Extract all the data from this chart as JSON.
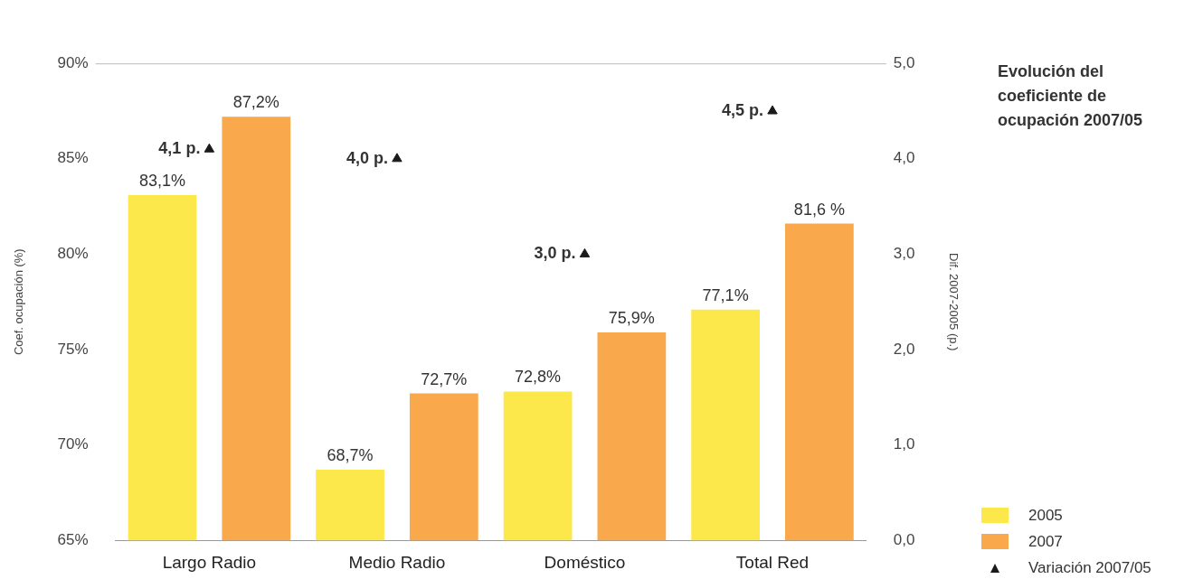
{
  "chart_data": {
    "type": "bar",
    "title": "Evolución del coeficiente de ocupación 2007/05",
    "categories": [
      "Largo Radio",
      "Medio Radio",
      "Doméstico",
      "Total Red"
    ],
    "series": [
      {
        "name": "2005",
        "color": "#fde84c",
        "values": [
          83.1,
          68.7,
          72.8,
          77.1
        ],
        "value_labels": [
          "83,1%",
          "68,7%",
          "72,8%",
          "77,1%"
        ]
      },
      {
        "name": "2007",
        "color": "#f9a94b",
        "values": [
          87.2,
          72.7,
          75.9,
          81.6
        ],
        "value_labels": [
          "87,2%",
          "72,7%",
          "75,9%",
          "81,6 %"
        ]
      },
      {
        "name": "Variación 2007/05",
        "type": "scatter",
        "axis": "y2",
        "color": "#1a1a1a",
        "marker": "triangle",
        "x": [
          "Largo Radio",
          "Medio Radio",
          "Doméstico",
          "Total Red"
        ],
        "values": [
          4.1,
          4.0,
          3.0,
          4.5
        ],
        "value_labels": [
          "4,1 p.",
          "4,0 p.",
          "3,0 p.",
          "4,5 p."
        ]
      }
    ],
    "ylabel": "Coef. ocupación (%)",
    "y2label": "Dif. 2007-2005 (p.)",
    "ylim": [
      65,
      90
    ],
    "yticks": [
      {
        "value": 65,
        "label": "65%"
      },
      {
        "value": 70,
        "label": "70%"
      },
      {
        "value": 75,
        "label": "75%"
      },
      {
        "value": 80,
        "label": "80%"
      },
      {
        "value": 85,
        "label": "85%"
      },
      {
        "value": 90,
        "label": "90%"
      }
    ],
    "y2lim": [
      0,
      5
    ],
    "y2ticks": [
      {
        "value": 0,
        "label": "0,0"
      },
      {
        "value": 1,
        "label": "1,0"
      },
      {
        "value": 2,
        "label": "2,0"
      },
      {
        "value": 3,
        "label": "3,0"
      },
      {
        "value": 4,
        "label": "4,0"
      },
      {
        "value": 5,
        "label": "5,0"
      }
    ],
    "grid": false,
    "legend": "bottom right"
  }
}
